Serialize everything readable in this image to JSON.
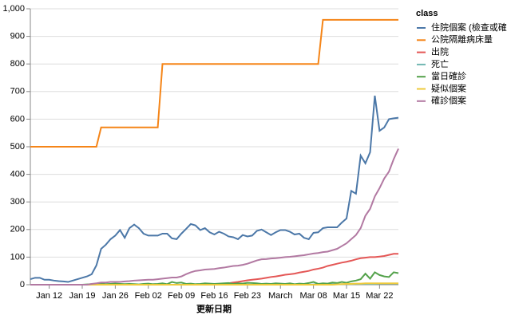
{
  "chart_data": {
    "type": "line",
    "x": [
      "Jan 08",
      "Jan 09",
      "Jan 10",
      "Jan 11",
      "Jan 12",
      "Jan 13",
      "Jan 14",
      "Jan 15",
      "Jan 16",
      "Jan 17",
      "Jan 18",
      "Jan 19",
      "Jan 20",
      "Jan 21",
      "Jan 22",
      "Jan 23",
      "Jan 24",
      "Jan 25",
      "Jan 26",
      "Jan 27",
      "Jan 28",
      "Jan 29",
      "Jan 30",
      "Jan 31",
      "Feb 01",
      "Feb 02",
      "Feb 03",
      "Feb 04",
      "Feb 05",
      "Feb 06",
      "Feb 07",
      "Feb 08",
      "Feb 09",
      "Feb 10",
      "Feb 11",
      "Feb 12",
      "Feb 13",
      "Feb 14",
      "Feb 15",
      "Feb 16",
      "Feb 17",
      "Feb 18",
      "Feb 19",
      "Feb 20",
      "Feb 21",
      "Feb 22",
      "Feb 23",
      "Feb 24",
      "Feb 25",
      "Feb 26",
      "Feb 27",
      "Feb 28",
      "Feb 29",
      "Mar 01",
      "Mar 02",
      "Mar 03",
      "Mar 04",
      "Mar 05",
      "Mar 06",
      "Mar 07",
      "Mar 08",
      "Mar 09",
      "Mar 10",
      "Mar 11",
      "Mar 12",
      "Mar 13",
      "Mar 14",
      "Mar 15",
      "Mar 16",
      "Mar 17",
      "Mar 18",
      "Mar 19",
      "Mar 20",
      "Mar 21",
      "Mar 22",
      "Mar 23",
      "Mar 24",
      "Mar 25",
      "Mar 26"
    ],
    "xticks": [
      "Jan 12",
      "Jan 19",
      "Jan 26",
      "Feb 02",
      "Feb 09",
      "Feb 16",
      "Feb 23",
      {
        "value": "Mar 01",
        "label": "March"
      },
      "Mar 08",
      "Mar 15",
      "Mar 22"
    ],
    "x_label": "更新日期",
    "ylim": [
      0,
      1000
    ],
    "yticks": [
      0,
      100,
      200,
      300,
      400,
      500,
      600,
      700,
      800,
      900,
      {
        "value": 1000,
        "label": "1,000"
      }
    ],
    "grid": true,
    "legend_title": "class",
    "legend": "right",
    "series": [
      {
        "name": "住院個案 (檢查或確",
        "color": "#4c78a8",
        "values": [
          20,
          25,
          25,
          18,
          18,
          15,
          13,
          12,
          10,
          15,
          20,
          25,
          30,
          38,
          70,
          130,
          145,
          165,
          178,
          198,
          170,
          205,
          218,
          205,
          185,
          178,
          178,
          178,
          185,
          185,
          168,
          165,
          185,
          202,
          220,
          215,
          198,
          205,
          190,
          182,
          192,
          185,
          175,
          172,
          165,
          180,
          175,
          178,
          195,
          200,
          190,
          180,
          190,
          198,
          198,
          192,
          182,
          185,
          170,
          165,
          188,
          190,
          205,
          208,
          208,
          208,
          225,
          240,
          340,
          330,
          468,
          440,
          480,
          685,
          558,
          570,
          600,
          603,
          605
        ]
      },
      {
        "name": "公院隔離病床量",
        "color": "#f58518",
        "values": [
          500,
          500,
          500,
          500,
          500,
          500,
          500,
          500,
          500,
          500,
          500,
          500,
          500,
          500,
          500,
          570,
          570,
          570,
          570,
          570,
          570,
          570,
          570,
          570,
          570,
          570,
          570,
          570,
          800,
          800,
          800,
          800,
          800,
          800,
          800,
          800,
          800,
          800,
          800,
          800,
          800,
          800,
          800,
          800,
          800,
          800,
          800,
          800,
          800,
          800,
          800,
          800,
          800,
          800,
          800,
          800,
          800,
          800,
          800,
          800,
          800,
          800,
          960,
          960,
          960,
          960,
          960,
          960,
          960,
          960,
          960,
          960,
          960,
          960,
          960,
          960,
          960,
          960,
          960
        ]
      },
      {
        "name": "出院",
        "color": "#e45756",
        "values": [
          0,
          0,
          0,
          0,
          0,
          0,
          0,
          0,
          0,
          0,
          0,
          0,
          0,
          0,
          0,
          0,
          0,
          0,
          0,
          0,
          0,
          0,
          0,
          0,
          0,
          0,
          0,
          0,
          0,
          0,
          0,
          0,
          0,
          0,
          0,
          0,
          0,
          0,
          0,
          0,
          2,
          3,
          5,
          8,
          10,
          13,
          16,
          18,
          20,
          22,
          25,
          28,
          30,
          33,
          36,
          38,
          40,
          44,
          47,
          50,
          55,
          58,
          62,
          68,
          72,
          76,
          80,
          83,
          87,
          92,
          96,
          98,
          100,
          100,
          102,
          104,
          108,
          112,
          112
        ]
      },
      {
        "name": "死亡",
        "color": "#72b7b2",
        "values": [
          0,
          0,
          0,
          0,
          0,
          0,
          0,
          0,
          0,
          0,
          0,
          0,
          0,
          0,
          0,
          0,
          0,
          0,
          0,
          0,
          0,
          0,
          0,
          0,
          0,
          0,
          0,
          0,
          0,
          0,
          0,
          0,
          0,
          0,
          0,
          0,
          0,
          0,
          0,
          0,
          0,
          0,
          0,
          0,
          0,
          0,
          0,
          0,
          0,
          0,
          0,
          0,
          0,
          0,
          0,
          0,
          0,
          0,
          0,
          0,
          1,
          1,
          1,
          2,
          2,
          2,
          2,
          2,
          2,
          3,
          3,
          3,
          3,
          3,
          4,
          4,
          4,
          4,
          4
        ]
      },
      {
        "name": "當日確診",
        "color": "#54a24b",
        "values": [
          0,
          0,
          0,
          0,
          0,
          0,
          0,
          0,
          0,
          0,
          0,
          0,
          1,
          2,
          3,
          5,
          2,
          3,
          4,
          3,
          2,
          3,
          2,
          1,
          3,
          4,
          2,
          3,
          5,
          2,
          10,
          6,
          8,
          3,
          4,
          2,
          3,
          5,
          4,
          3,
          4,
          5,
          6,
          3,
          5,
          4,
          7,
          6,
          5,
          3,
          4,
          3,
          5,
          4,
          3,
          5,
          2,
          4,
          3,
          6,
          10,
          3,
          5,
          4,
          8,
          6,
          10,
          7,
          12,
          15,
          20,
          40,
          22,
          45,
          35,
          30,
          28,
          45,
          42
        ]
      },
      {
        "name": "疑似個案",
        "color": "#eeca3b",
        "values": [
          0,
          0,
          0,
          0,
          0,
          0,
          0,
          0,
          0,
          0,
          0,
          0,
          0,
          0,
          0,
          0,
          0,
          0,
          0,
          0,
          0,
          0,
          0,
          0,
          0,
          0,
          0,
          0,
          0,
          0,
          0,
          0,
          0,
          0,
          0,
          0,
          0,
          0,
          0,
          0,
          0,
          0,
          0,
          0,
          0,
          0,
          0,
          0,
          0,
          0,
          0,
          0,
          0,
          0,
          0,
          0,
          0,
          0,
          0,
          0,
          0,
          0,
          0,
          0,
          0,
          1,
          2,
          3,
          3,
          4,
          4,
          5,
          5,
          5,
          5,
          5,
          5,
          5,
          5
        ]
      },
      {
        "name": "確診個案",
        "color": "#b279a2",
        "values": [
          0,
          0,
          0,
          0,
          0,
          0,
          0,
          0,
          0,
          0,
          0,
          0,
          0,
          3,
          5,
          8,
          8,
          10,
          10,
          10,
          12,
          13,
          15,
          16,
          17,
          18,
          18,
          20,
          22,
          24,
          26,
          26,
          30,
          38,
          45,
          50,
          52,
          55,
          56,
          57,
          60,
          62,
          65,
          68,
          69,
          72,
          76,
          82,
          88,
          92,
          93,
          95,
          96,
          98,
          100,
          101,
          103,
          105,
          107,
          110,
          113,
          115,
          118,
          120,
          125,
          130,
          140,
          150,
          165,
          180,
          205,
          250,
          275,
          320,
          350,
          385,
          410,
          455,
          493
        ]
      }
    ]
  }
}
